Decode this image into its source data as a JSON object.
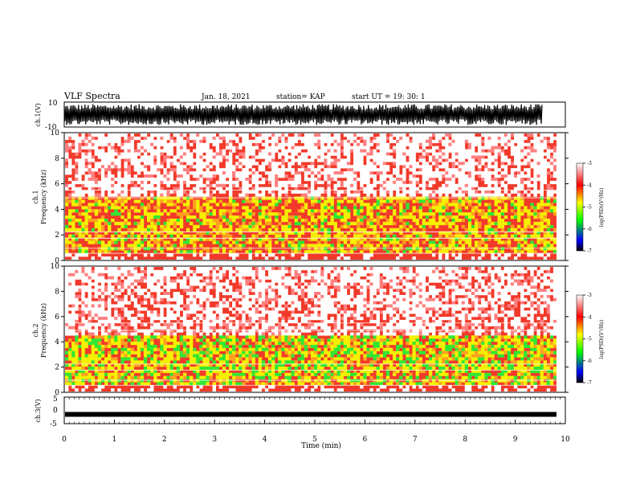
{
  "header": {
    "title": "VLF Spectra",
    "date": "Jan. 18, 2021",
    "station": "station= KAP",
    "start": "start  UT =   19: 30: 1"
  },
  "chart_data": [
    {
      "type": "line",
      "panel": "ch1-waveform",
      "ylabel": "ch.1(V)",
      "ylim": [
        -10,
        10
      ],
      "ytick_labels": [
        "10",
        "-10"
      ],
      "xlim": [
        0,
        10
      ]
    },
    {
      "type": "heatmap",
      "panel": "ch1-spectrogram",
      "ylabel": "ch.1\nFrequency (kHz)",
      "ylabel_lines": [
        "ch.1",
        "Frequency (kHz)"
      ],
      "ylim": [
        0,
        10
      ],
      "ytick_labels": [
        "10",
        "8",
        "6",
        "4",
        "2",
        "0"
      ],
      "xlim": [
        0,
        10
      ],
      "colorbar": {
        "label": "log(PSD)(V²/Hz)",
        "range": [
          -7,
          -3
        ],
        "tick_labels": [
          "-3",
          "-4",
          "-5",
          "-6",
          "-7"
        ],
        "colors": [
          "#ffffff",
          "#ff0000",
          "#ffff00",
          "#00ff00",
          "#0000ff",
          "#000000"
        ]
      },
      "dominant_band_khz": [
        0.5,
        4.5
      ]
    },
    {
      "type": "heatmap",
      "panel": "ch2-spectrogram",
      "ylabel": "ch.2\nFrequency (kHz)",
      "ylabel_lines": [
        "ch.2",
        "Frequency (kHz)"
      ],
      "ylim": [
        0,
        10
      ],
      "ytick_labels": [
        "10",
        "8",
        "6",
        "4",
        "2",
        "0"
      ],
      "xlim": [
        0,
        10
      ],
      "colorbar": {
        "label": "log(PSD)(V²/Hz)",
        "range": [
          -7,
          -3
        ],
        "tick_labels": [
          "-3",
          "-4",
          "-5",
          "-6",
          "-7"
        ],
        "colors": [
          "#ffffff",
          "#ff0000",
          "#ffff00",
          "#00ff00",
          "#0000ff",
          "#000000"
        ]
      },
      "dominant_band_khz": [
        0.5,
        4.0
      ]
    },
    {
      "type": "line",
      "panel": "ch3-waveform",
      "ylabel": "ch.3(V)",
      "ylim": [
        -5,
        5
      ],
      "ytick_labels": [
        "5",
        "0",
        "-5"
      ],
      "xlim": [
        0,
        10
      ],
      "xlabel": "Time (min)",
      "xtick_labels": [
        "0",
        "1",
        "2",
        "3",
        "4",
        "5",
        "6",
        "7",
        "8",
        "9",
        "10"
      ],
      "baseline_value": -1.5
    }
  ]
}
